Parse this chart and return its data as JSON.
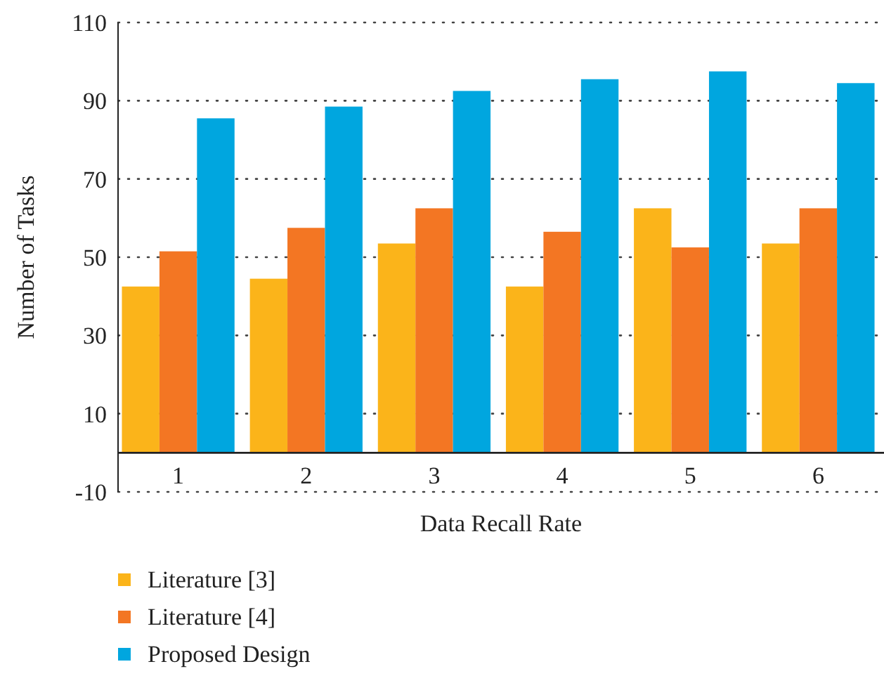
{
  "chart_data": {
    "type": "bar",
    "xlabel": "Data Recall Rate",
    "ylabel": "Number of Tasks",
    "categories": [
      "1",
      "2",
      "3",
      "4",
      "5",
      "6"
    ],
    "series": [
      {
        "name": "Literature [3]",
        "color": "#fbb41a",
        "values": [
          42.5,
          44.5,
          53.5,
          42.5,
          62.5,
          53.5
        ]
      },
      {
        "name": "Literature [4]",
        "color": "#f37623",
        "values": [
          51.5,
          57.5,
          62.5,
          56.5,
          52.5,
          62.5
        ]
      },
      {
        "name": "Proposed Design",
        "color": "#00a6df",
        "values": [
          85.5,
          88.5,
          92.5,
          95.5,
          97.5,
          94.5
        ]
      }
    ],
    "ylim": [
      -10,
      110
    ],
    "yticks": [
      -10,
      10,
      30,
      50,
      70,
      90,
      110
    ],
    "grid": "y",
    "legend": "bottom"
  }
}
